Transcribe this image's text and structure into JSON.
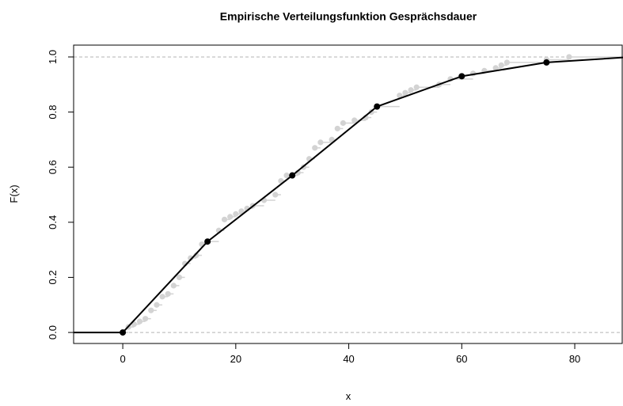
{
  "chart_data": {
    "type": "ecdf",
    "title": "Empirische Verteilungsfunktion Gesprächsdauer",
    "x_label": "x",
    "y_label": "F(x)",
    "xlim": [
      -8.7,
      88.4
    ],
    "ylim": [
      -0.04,
      1.043
    ],
    "xticks": [
      0,
      20,
      40,
      60,
      80
    ],
    "yticks": [
      {
        "value": 0,
        "label": "0.0"
      },
      {
        "value": 0.2,
        "label": "0.2"
      },
      {
        "value": 0.4,
        "label": "0.4"
      },
      {
        "value": 0.6,
        "label": "0.6"
      },
      {
        "value": 0.8,
        "label": "0.8"
      },
      {
        "value": 1,
        "label": "1.0"
      }
    ],
    "reference_lines": [
      0,
      1
    ],
    "series": [
      {
        "name": "ecdf",
        "color": "#d3d3d3",
        "style": "step",
        "x": [
          1,
          2,
          3,
          4,
          5,
          6,
          7,
          8,
          9,
          10,
          11,
          12,
          13,
          14,
          15,
          17,
          18,
          19,
          20,
          21,
          22,
          23,
          25,
          27,
          28,
          29,
          31,
          32,
          33,
          34,
          35,
          37,
          38,
          39,
          41,
          43,
          44,
          45,
          49,
          50,
          51,
          52,
          56,
          58,
          62,
          64,
          66,
          67,
          68,
          75,
          79
        ],
        "values": [
          0.02,
          0.03,
          0.04,
          0.05,
          0.08,
          0.1,
          0.13,
          0.14,
          0.17,
          0.2,
          0.25,
          0.27,
          0.28,
          0.32,
          0.33,
          0.37,
          0.41,
          0.42,
          0.43,
          0.44,
          0.45,
          0.46,
          0.48,
          0.5,
          0.55,
          0.57,
          0.58,
          0.6,
          0.63,
          0.67,
          0.69,
          0.7,
          0.74,
          0.76,
          0.77,
          0.78,
          0.8,
          0.82,
          0.86,
          0.87,
          0.88,
          0.89,
          0.9,
          0.92,
          0.94,
          0.95,
          0.96,
          0.97,
          0.98,
          0.99,
          1
        ]
      },
      {
        "name": "classes",
        "color": "#000000",
        "style": "polygon",
        "x": [
          0,
          15,
          30,
          45,
          60,
          75,
          90
        ],
        "values": [
          0,
          0.33,
          0.57,
          0.82,
          0.93,
          0.98,
          1
        ]
      }
    ]
  }
}
